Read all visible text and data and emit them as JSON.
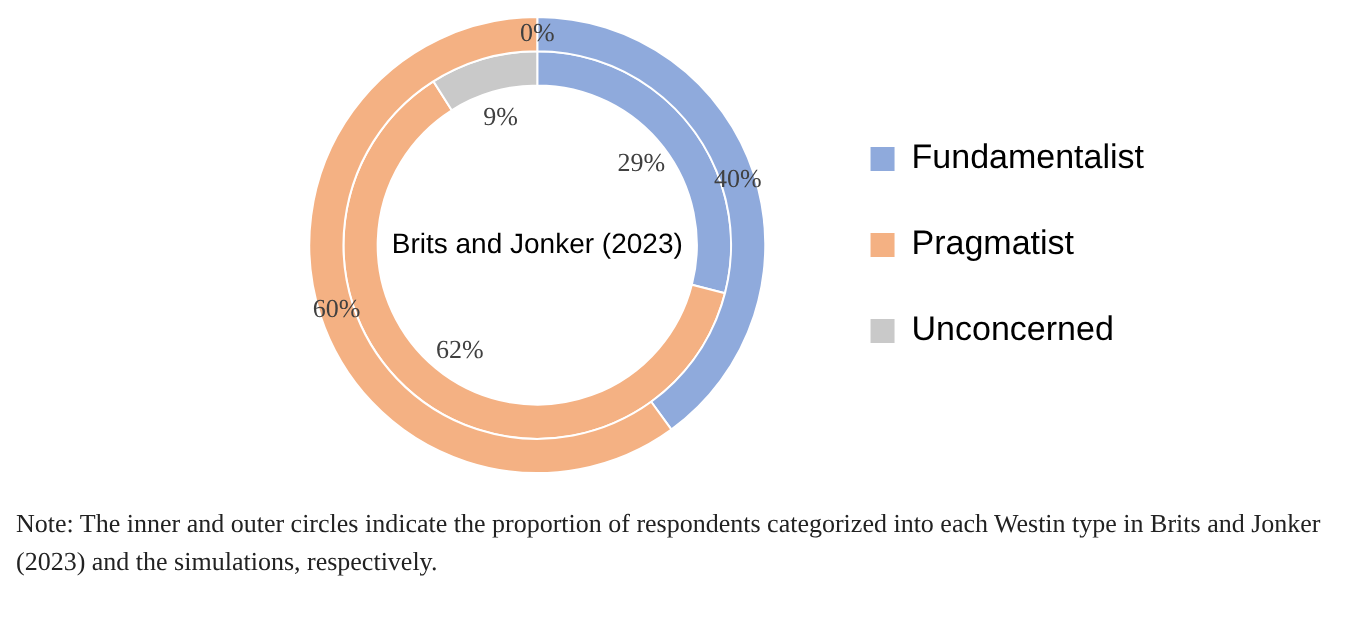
{
  "chart_data": {
    "type": "donut",
    "categories": [
      "Fundamentalist",
      "Pragmatist",
      "Unconcerned"
    ],
    "series": [
      {
        "values": [
          40,
          60,
          0
        ],
        "value_labels": [
          "40%",
          "60%",
          "0%"
        ],
        "colors": [
          "#8faadc",
          "#f4b183",
          "#c9c9c9"
        ]
      },
      {
        "name": "Brits and Jonker (2023)",
        "values": [
          29,
          62,
          9
        ],
        "value_labels": [
          "29%",
          "62%",
          "9%"
        ],
        "colors": [
          "#8faadc",
          "#f4b183",
          "#c9c9c9"
        ]
      }
    ],
    "legend": "right",
    "annotations": [
      "Note: The inner and outer circles indicate the proportion of respondents categorized into each Westin type in Brits and Jonker (2023) and the simulations, respectively."
    ]
  }
}
